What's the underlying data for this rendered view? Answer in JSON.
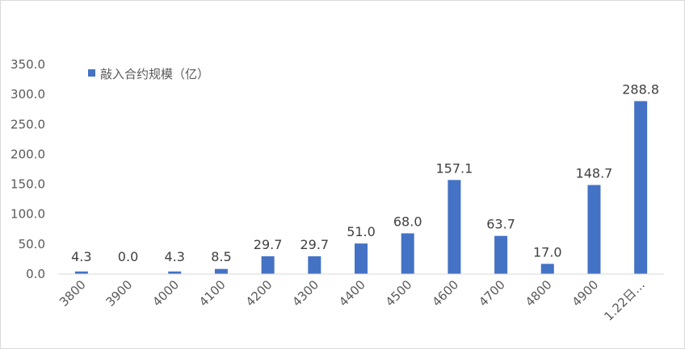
{
  "chart_data": {
    "type": "bar",
    "categories": [
      "3800",
      "3900",
      "4000",
      "4100",
      "4200",
      "4300",
      "4400",
      "4500",
      "4600",
      "4700",
      "4800",
      "4900",
      "1.22日…"
    ],
    "series": [
      {
        "name": "敲入合约规模（亿）",
        "values": [
          4.3,
          0.0,
          4.3,
          8.5,
          29.7,
          29.7,
          51.0,
          68.0,
          157.1,
          63.7,
          17.0,
          148.7,
          288.8
        ],
        "labels": [
          "4.3",
          "0.0",
          "4.3",
          "8.5",
          "29.7",
          "29.7",
          "51.0",
          "68.0",
          "157.1",
          "63.7",
          "17.0",
          "148.7",
          "288.8"
        ]
      }
    ],
    "yticks": [
      "0.0",
      "50.0",
      "100.0",
      "150.0",
      "200.0",
      "250.0",
      "300.0",
      "350.0"
    ],
    "ylim": [
      0,
      350
    ],
    "grid": false,
    "legend": "top-left",
    "colors": {
      "bar": "#4472c4",
      "axis": "#d9d9d9",
      "text": "#595959",
      "label": "#404040"
    }
  }
}
